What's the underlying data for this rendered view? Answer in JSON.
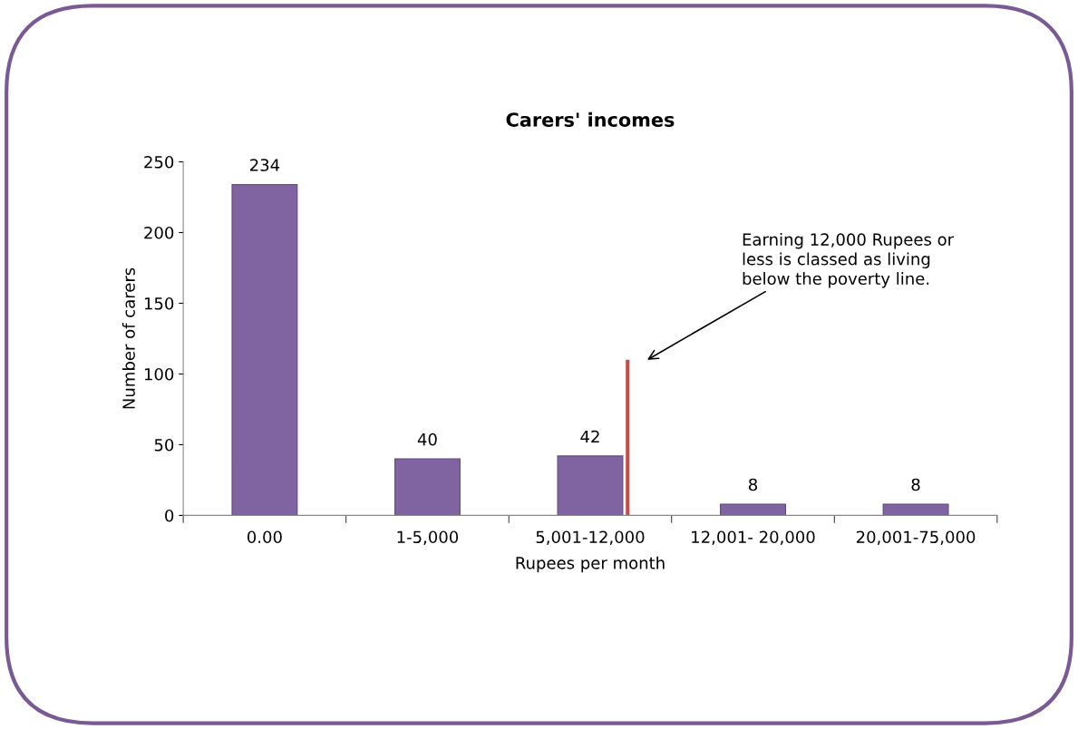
{
  "chart_data": {
    "type": "bar",
    "title": "Carers' incomes",
    "xlabel": "Rupees per month",
    "ylabel": "Number of carers",
    "categories": [
      "0.00",
      "1-5,000",
      "5,001-12,000",
      "12,001- 20,000",
      "20,001-75,000"
    ],
    "values": [
      234,
      40,
      42,
      8,
      8
    ],
    "color": "#8064a2",
    "data_labels": true,
    "ylim": [
      0,
      250
    ],
    "yticks": [
      0,
      50,
      100,
      150,
      200,
      250
    ],
    "grid": false,
    "legend": false,
    "ref_lines": [
      {
        "axis": "x",
        "value": "5,001-12,000",
        "color": "#c0504d"
      }
    ],
    "annotations": [
      "Earning 12,000 Rupees or\nless is classed as living\nbelow the poverty line."
    ]
  }
}
